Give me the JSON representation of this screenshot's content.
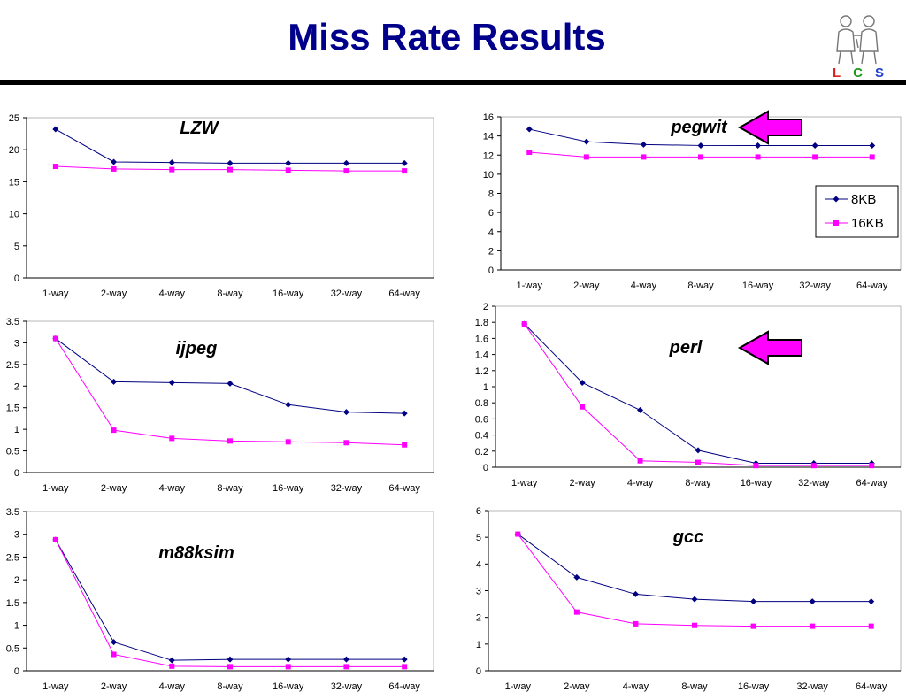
{
  "page": {
    "title": "Miss Rate Results"
  },
  "logo": {
    "letters": [
      "L",
      "C",
      "S"
    ]
  },
  "legend": {
    "series": [
      "8KB",
      "16KB"
    ]
  },
  "colors": {
    "series_8kb": "#000080",
    "series_16kb": "#ff00ff",
    "arrow": "#ff00ff",
    "title": "#00008b"
  },
  "chart_data": [
    {
      "type": "line",
      "title": "LZW",
      "categories": [
        "1-way",
        "2-way",
        "4-way",
        "8-way",
        "16-way",
        "32-way",
        "64-way"
      ],
      "ylim": [
        0,
        25
      ],
      "yticks": [
        0,
        5,
        10,
        15,
        20,
        25
      ],
      "series": [
        {
          "name": "8KB",
          "values": [
            23.2,
            18.1,
            18.0,
            17.9,
            17.9,
            17.9,
            17.9
          ]
        },
        {
          "name": "16KB",
          "values": [
            17.4,
            17.0,
            16.9,
            16.9,
            16.8,
            16.7,
            16.7
          ]
        }
      ]
    },
    {
      "type": "line",
      "title": "pegwit",
      "highlighted": true,
      "categories": [
        "1-way",
        "2-way",
        "4-way",
        "8-way",
        "16-way",
        "32-way",
        "64-way"
      ],
      "ylim": [
        0,
        16
      ],
      "yticks": [
        0,
        2,
        4,
        6,
        8,
        10,
        12,
        14,
        16
      ],
      "series": [
        {
          "name": "8KB",
          "values": [
            14.7,
            13.4,
            13.1,
            13.0,
            13.0,
            13.0,
            13.0
          ]
        },
        {
          "name": "16KB",
          "values": [
            12.3,
            11.8,
            11.8,
            11.8,
            11.8,
            11.8,
            11.8
          ]
        }
      ]
    },
    {
      "type": "line",
      "title": "ijpeg",
      "categories": [
        "1-way",
        "2-way",
        "4-way",
        "8-way",
        "16-way",
        "32-way",
        "64-way"
      ],
      "ylim": [
        0,
        3.5
      ],
      "yticks": [
        0,
        0.5,
        1,
        1.5,
        2,
        2.5,
        3,
        3.5
      ],
      "series": [
        {
          "name": "8KB",
          "values": [
            3.1,
            2.1,
            2.08,
            2.06,
            1.57,
            1.4,
            1.37
          ]
        },
        {
          "name": "16KB",
          "values": [
            3.1,
            0.98,
            0.79,
            0.73,
            0.71,
            0.69,
            0.64
          ]
        }
      ]
    },
    {
      "type": "line",
      "title": "perl",
      "highlighted": true,
      "categories": [
        "1-way",
        "2-way",
        "4-way",
        "8-way",
        "16-way",
        "32-way",
        "64-way"
      ],
      "ylim": [
        0,
        2
      ],
      "yticks": [
        0,
        0.2,
        0.4,
        0.6,
        0.8,
        1,
        1.2,
        1.4,
        1.6,
        1.8,
        2
      ],
      "series": [
        {
          "name": "8KB",
          "values": [
            1.78,
            1.05,
            0.71,
            0.21,
            0.05,
            0.05,
            0.05
          ]
        },
        {
          "name": "16KB",
          "values": [
            1.78,
            0.75,
            0.08,
            0.06,
            0.02,
            0.02,
            0.02
          ]
        }
      ]
    },
    {
      "type": "line",
      "title": "m88ksim",
      "categories": [
        "1-way",
        "2-way",
        "4-way",
        "8-way",
        "16-way",
        "32-way",
        "64-way"
      ],
      "ylim": [
        0,
        3.5
      ],
      "yticks": [
        0,
        0.5,
        1,
        1.5,
        2,
        2.5,
        3,
        3.5
      ],
      "series": [
        {
          "name": "8KB",
          "values": [
            2.88,
            0.63,
            0.23,
            0.25,
            0.25,
            0.25,
            0.25
          ]
        },
        {
          "name": "16KB",
          "values": [
            2.88,
            0.36,
            0.1,
            0.09,
            0.09,
            0.09,
            0.09
          ]
        }
      ]
    },
    {
      "type": "line",
      "title": "gcc",
      "categories": [
        "1-way",
        "2-way",
        "4-way",
        "8-way",
        "16-way",
        "32-way",
        "64-way"
      ],
      "ylim": [
        0,
        6
      ],
      "yticks": [
        0,
        1,
        2,
        3,
        4,
        5,
        6
      ],
      "series": [
        {
          "name": "8KB",
          "values": [
            5.12,
            3.5,
            2.87,
            2.68,
            2.6,
            2.6,
            2.6
          ]
        },
        {
          "name": "16KB",
          "values": [
            5.12,
            2.2,
            1.76,
            1.7,
            1.67,
            1.67,
            1.67
          ]
        }
      ]
    }
  ]
}
